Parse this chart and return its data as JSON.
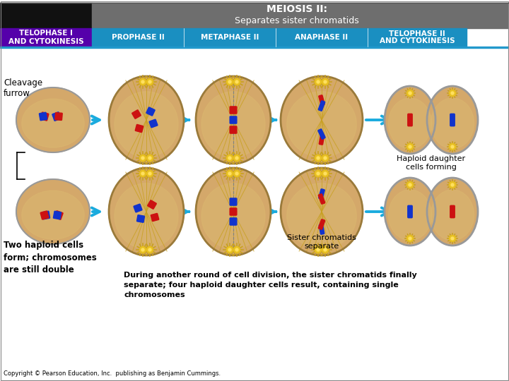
{
  "title_banner_color": "#6e6e6e",
  "title_line1": "MEIOSIS II:",
  "title_line2": "Separates sister chromatids",
  "left_header_color": "#5500aa",
  "phase_header_color": "#1a8fc1",
  "left_header_text": "TELOPHASE I\nAND CYTOKINESIS",
  "phase_headers": [
    "PROPHASE II",
    "METAPHASE II",
    "ANAPHASE II",
    "TELOPHASE II\nAND CYTOKINESIS"
  ],
  "cell_bg_color": "#d4a86a",
  "cell_outline_color": "#9a7a3a",
  "bg_color": "#e8e8e8",
  "inner_bg": "#ffffff",
  "arrow_color": "#1aabde",
  "black_header_color": "#111111",
  "red_chrom": "#cc1111",
  "blue_chrom": "#1133cc",
  "spindle_color": "#c8a020",
  "aster_color": "#e8c020",
  "cell_inner_color": "#dbb870",
  "gray_outline": "#999999",
  "copyright_text": "Copyright © Pearson Education, Inc.  publishing as Benjamin Cummings.",
  "label_cleavage": "Cleavage\nfurrow",
  "label_two_haploid": "Two haploid cells\nform; chromosomes\nare still double",
  "label_sister": "Sister chromatids\nseparate",
  "label_haploid_daughter": "Haploid daughter\ncells forming",
  "label_during": "During another round of cell division, the sister chromatids finally\nseparate; four haploid daughter cells result, containing single\nchromosomes"
}
